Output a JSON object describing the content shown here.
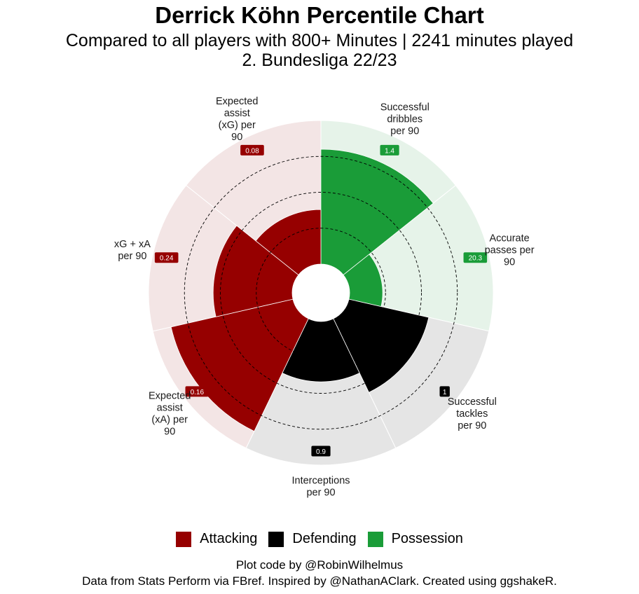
{
  "title": "Derrick Köhn Percentile Chart",
  "subtitle_line1": "Compared to all players with 800+ Minutes | 2241 minutes played",
  "subtitle_line2": "2. Bundesliga 22/23",
  "colors": {
    "Attacking": "#960000",
    "Defending": "#000000",
    "Possession": "#1a9c38",
    "bg_Attacking": "#f3e5e5",
    "bg_Defending": "#e5e5e5",
    "bg_Possession": "#e6f3e9"
  },
  "legend": [
    {
      "label": "Attacking",
      "color": "#960000"
    },
    {
      "label": "Defending",
      "color": "#000000"
    },
    {
      "label": "Possession",
      "color": "#1a9c38"
    }
  ],
  "chart_data": {
    "type": "polar_bar",
    "title": "Derrick Köhn Percentile Chart",
    "ylim": [
      0,
      100
    ],
    "gridlines": [
      25,
      50,
      75
    ],
    "series": [
      {
        "stat": "Successful dribbles per 90",
        "label_lines": [
          "Successful",
          "dribbles",
          "per 90"
        ],
        "category": "Possession",
        "percentile": 80,
        "value": "1.4"
      },
      {
        "stat": "Accurate passes per 90",
        "label_lines": [
          "Accurate",
          "passes per",
          "90"
        ],
        "category": "Possession",
        "percentile": 23,
        "value": "20.3"
      },
      {
        "stat": "Successful tackles per 90",
        "label_lines": [
          "Successful",
          "tackles",
          "per 90"
        ],
        "category": "Defending",
        "percentile": 57,
        "value": "1"
      },
      {
        "stat": "Interceptions per 90",
        "label_lines": [
          "Interceptions",
          "per 90"
        ],
        "category": "Defending",
        "percentile": 42,
        "value": "0.9"
      },
      {
        "stat": "Expected assist (xA) per 90",
        "label_lines": [
          "Expected",
          "assist",
          "(xA) per",
          "90"
        ],
        "category": "Attacking",
        "percentile": 87,
        "value": "0.16"
      },
      {
        "stat": "xG + xA per 90",
        "label_lines": [
          "xG + xA",
          "per 90"
        ],
        "category": "Attacking",
        "percentile": 55,
        "value": "0.24"
      },
      {
        "stat": "Expected assist (xG) per 90",
        "label_lines": [
          "Expected",
          "assist",
          "(xG) per",
          "90"
        ],
        "category": "Attacking",
        "percentile": 38,
        "value": "0.08"
      }
    ]
  },
  "caption_line1": "Plot code by @RobinWilhelmus",
  "caption_line2": "Data from Stats Perform via FBref. Inspired by @NathanAClark. Created using ggshakeR."
}
